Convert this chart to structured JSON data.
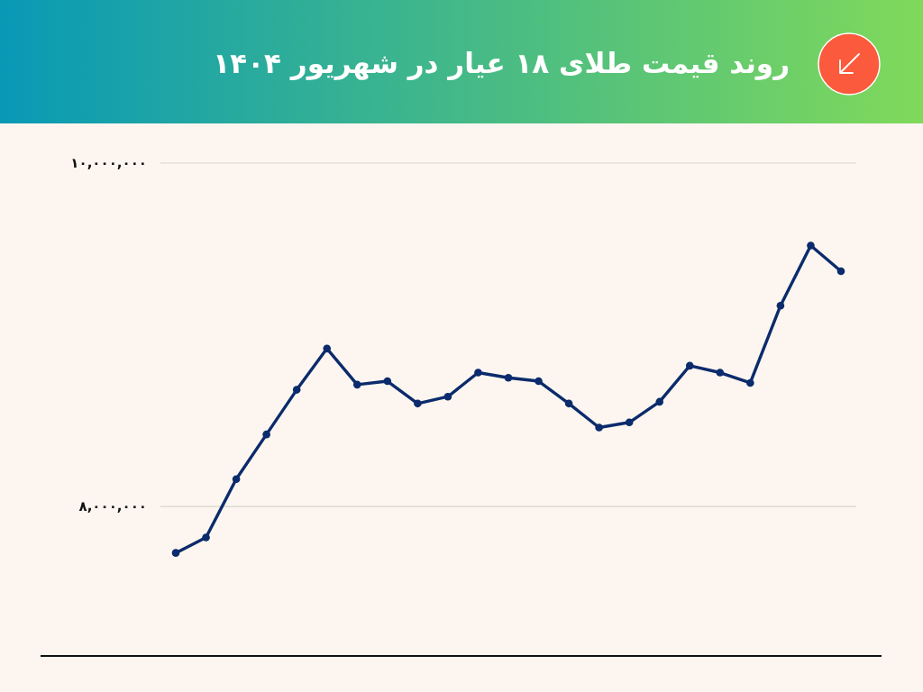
{
  "chart_data": {
    "type": "line",
    "title": "روند قیمت طلای ۱۸ عیار در شهریور ۱۴۰۴",
    "categories": [
      null,
      null,
      null,
      null,
      null,
      null,
      null,
      null,
      null,
      null,
      null,
      null,
      null,
      null,
      null,
      null,
      null,
      null,
      null,
      null,
      null,
      null,
      null
    ],
    "series": [
      {
        "color": "#0b2b6c",
        "values": [
          7730000,
          7820000,
          8160000,
          8420000,
          8680000,
          8920000,
          8710000,
          8730000,
          8600000,
          8640000,
          8780000,
          8750000,
          8730000,
          8600000,
          8460000,
          8490000,
          8610000,
          8820000,
          8780000,
          8720000,
          9170000,
          9520000,
          9370000
        ]
      }
    ],
    "ylim": [
      7130000,
      10000000
    ],
    "yticks": [
      {
        "value": 8000000,
        "label": "۸,۰۰۰,۰۰۰"
      },
      {
        "value": 10000000,
        "label": "۱۰,۰۰۰,۰۰۰"
      }
    ],
    "grid": "y",
    "marker": "circle",
    "line_style": "solid"
  }
}
